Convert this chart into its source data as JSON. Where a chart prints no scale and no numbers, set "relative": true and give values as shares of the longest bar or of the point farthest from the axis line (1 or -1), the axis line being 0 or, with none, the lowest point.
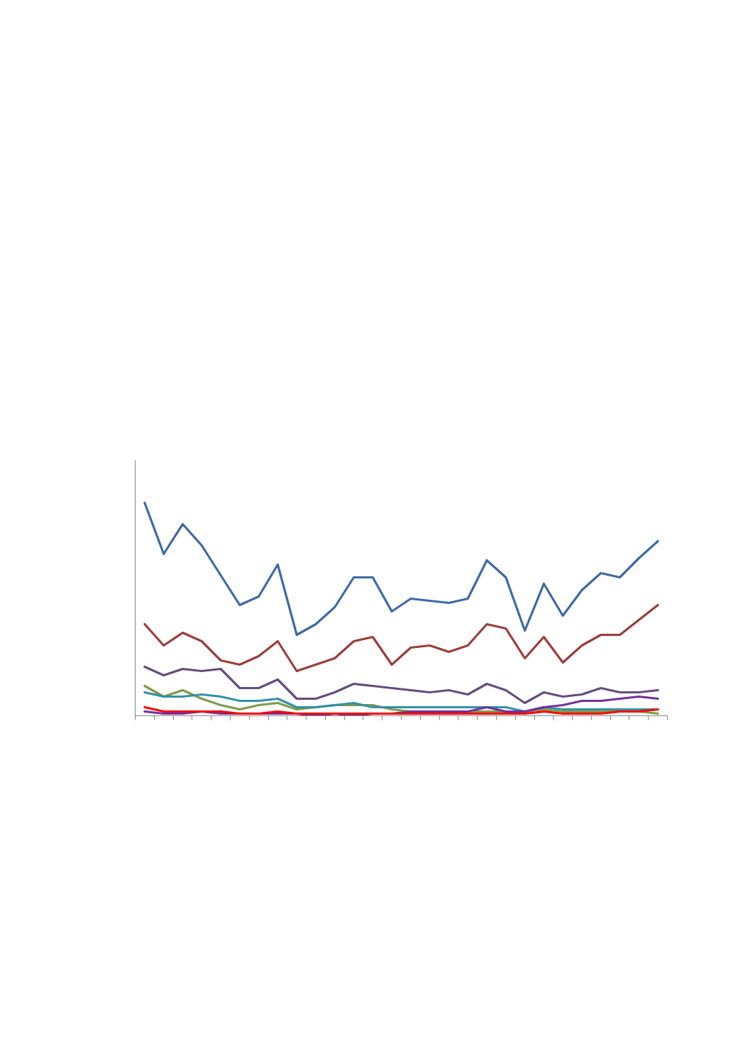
{
  "chart_data": {
    "type": "line",
    "relative": true,
    "categories": [
      null,
      null,
      null,
      null,
      null,
      null,
      null,
      null,
      null,
      null,
      null,
      null,
      null,
      null,
      null,
      null,
      null,
      null,
      null,
      null,
      null,
      null,
      null,
      null,
      null,
      null,
      null,
      null
    ],
    "series": [
      {
        "color": "#3d6aa3",
        "values": [
          1.0,
          0.76,
          0.9,
          0.8,
          0.66,
          0.52,
          0.56,
          0.71,
          0.38,
          0.43,
          0.51,
          0.65,
          0.65,
          0.49,
          0.55,
          0.54,
          0.53,
          0.55,
          0.73,
          0.65,
          0.4,
          0.62,
          0.47,
          0.59,
          0.67,
          0.65,
          0.74,
          0.82
        ]
      },
      {
        "color": "#9c3d3a",
        "values": [
          0.43,
          0.33,
          0.39,
          0.35,
          0.26,
          0.24,
          0.28,
          0.35,
          0.21,
          0.24,
          0.27,
          0.35,
          0.37,
          0.24,
          0.32,
          0.33,
          0.3,
          0.33,
          0.43,
          0.41,
          0.27,
          0.37,
          0.25,
          0.33,
          0.38,
          0.38,
          0.45,
          0.52
        ]
      },
      {
        "color": "#7f9a48",
        "values": [
          0.14,
          0.09,
          0.12,
          0.08,
          0.05,
          0.03,
          0.05,
          0.06,
          0.03,
          0.04,
          0.05,
          0.05,
          0.05,
          0.03,
          0.02,
          0.02,
          0.02,
          0.02,
          0.02,
          0.02,
          0.02,
          0.03,
          0.02,
          0.02,
          0.02,
          0.02,
          0.02,
          0.01
        ]
      },
      {
        "color": "#634d7f",
        "values": [
          0.23,
          0.19,
          0.22,
          0.21,
          0.22,
          0.13,
          0.13,
          0.17,
          0.08,
          0.08,
          0.11,
          0.15,
          0.14,
          0.13,
          0.12,
          0.11,
          0.12,
          0.1,
          0.15,
          0.12,
          0.06,
          0.11,
          0.09,
          0.1,
          0.13,
          0.11,
          0.11,
          0.12
        ]
      },
      {
        "color": "#3490a8",
        "values": [
          0.11,
          0.09,
          0.09,
          0.1,
          0.09,
          0.07,
          0.07,
          0.08,
          0.04,
          0.04,
          0.05,
          0.06,
          0.04,
          0.04,
          0.04,
          0.04,
          0.04,
          0.04,
          0.04,
          0.04,
          0.02,
          0.04,
          0.03,
          0.03,
          0.03,
          0.03,
          0.03,
          0.03
        ]
      },
      {
        "color": "#7030a0",
        "values": [
          0.02,
          0.01,
          0.01,
          0.02,
          0.01,
          0.01,
          0.01,
          0.01,
          0.01,
          0.0,
          0.01,
          0.0,
          0.01,
          0.01,
          0.02,
          0.02,
          0.02,
          0.02,
          0.04,
          0.02,
          0.02,
          0.04,
          0.05,
          0.07,
          0.07,
          0.08,
          0.09,
          0.08
        ]
      },
      {
        "color": "#ff0000",
        "values": [
          0.04,
          0.02,
          0.02,
          0.02,
          0.02,
          0.01,
          0.01,
          0.02,
          0.01,
          0.01,
          0.01,
          0.01,
          0.01,
          0.01,
          0.01,
          0.01,
          0.01,
          0.01,
          0.01,
          0.01,
          0.01,
          0.02,
          0.01,
          0.01,
          0.01,
          0.02,
          0.02,
          0.03
        ]
      }
    ]
  }
}
